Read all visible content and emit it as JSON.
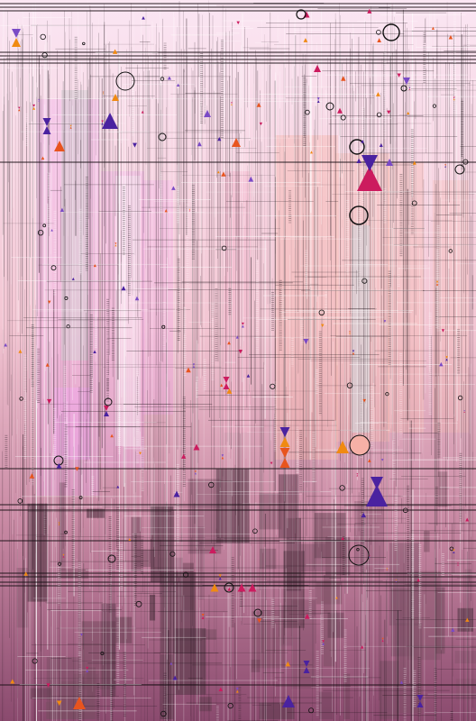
{
  "artwork": {
    "description_tag": "",
    "palette": {
      "background_top": "#fbe6f3",
      "background_mid": "#f3c6d3",
      "background_bottom": "#8a4a6e",
      "magenta_top": "#f2a9ea",
      "salmon": "#f6b9b0",
      "grey_column": "#d6cdd3",
      "dark_block": "#5b3a4a",
      "line_dark": "#1a1016",
      "line_light": "#ffffff",
      "accent_orange": "#f08a12",
      "accent_red_orange": "#e8541e",
      "accent_crimson": "#cc1b5e",
      "accent_indigo": "#4a22a0",
      "accent_violet": "#7a4ac6",
      "circle_stroke": "#111111",
      "circle_fill_peach": "#f6b0a6"
    },
    "marker_icons": [
      "hourglass-icon",
      "triangle-icon",
      "circle-icon"
    ]
  }
}
